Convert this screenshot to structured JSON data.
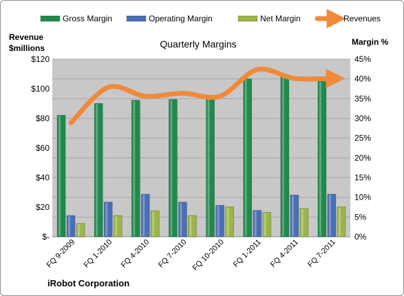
{
  "colors": {
    "gross_margin": "#1f8a4c",
    "operating_margin": "#4a6fb5",
    "net_margin": "#9bb548",
    "revenues": "#f08a3a",
    "plot_background": "#c8c8c8",
    "gridline": "#a6a6a6"
  },
  "chart_data": {
    "type": "bar",
    "title": "Quarterly Margins",
    "footer": "iRobot Corporation",
    "left_axis_label_line1": "Revenue",
    "left_axis_label_line2": "$millions",
    "right_axis_label": "Margin %",
    "categories": [
      "FQ 9-2009",
      "FQ 1-2010",
      "FQ 4-2010",
      "FQ 7-2010",
      "FQ 10-2010",
      "FQ 1-2011",
      "FQ 4-2011",
      "FQ 7-2011"
    ],
    "left_ticks": [
      "$-",
      "$20",
      "$40",
      "$60",
      "$80",
      "$100",
      "$120"
    ],
    "right_ticks": [
      "0%",
      "5%",
      "10%",
      "15%",
      "20%",
      "25%",
      "30%",
      "35%",
      "40%",
      "45%"
    ],
    "left_ylim": [
      0,
      120
    ],
    "right_ylim": [
      0,
      45
    ],
    "legend_position": "top",
    "grid": true,
    "series": [
      {
        "name": "Gross Margin",
        "kind": "bar",
        "axis": "right",
        "color_key": "gross_margin",
        "values": [
          30.8,
          33.8,
          34.6,
          34.8,
          35.2,
          40.0,
          40.8,
          39.4
        ]
      },
      {
        "name": "Operating Margin",
        "kind": "bar",
        "axis": "right",
        "color_key": "operating_margin",
        "values": [
          5.4,
          8.8,
          10.8,
          8.8,
          8.0,
          6.7,
          10.6,
          10.8
        ]
      },
      {
        "name": "Net Margin",
        "kind": "bar",
        "axis": "right",
        "color_key": "net_margin",
        "values": [
          3.4,
          5.4,
          6.6,
          5.4,
          7.6,
          6.2,
          7.2,
          7.6
        ]
      },
      {
        "name": "Revenues",
        "kind": "line",
        "axis": "left",
        "color_key": "revenues",
        "values": [
          77,
          101,
          95,
          97,
          95,
          113,
          107,
          107
        ]
      }
    ]
  }
}
